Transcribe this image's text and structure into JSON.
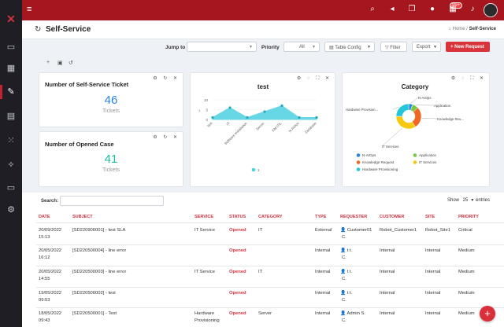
{
  "topbar": {
    "notification_count": "99+"
  },
  "page": {
    "title": "Self-Service",
    "breadcrumb_home": "Home",
    "breadcrumb_current": "Self-Service"
  },
  "toolbar": {
    "jump_label": "Jump to",
    "priority_label": "Priority",
    "priority_value": "All",
    "table_config": "Table Config",
    "filter": "Filter",
    "export": "Export",
    "new_request": "+ New Request"
  },
  "cards": {
    "self_service": {
      "title": "Number of Self-Service Ticket",
      "value": "46",
      "unit": "Tickets",
      "color": "#2e86de"
    },
    "opened_case": {
      "title": "Number of Opened Case",
      "value": "41",
      "unit": "Tickets",
      "color": "#1abc9c"
    }
  },
  "chart_data": [
    {
      "type": "area",
      "title": "test",
      "categories": [
        "N/A",
        "IT",
        "Software Installation",
        "Server",
        "KM-ITIL",
        "N-AIOps",
        "Database"
      ],
      "series": [
        {
          "name": "1",
          "values": [
            1,
            6,
            1,
            4,
            7,
            1,
            1
          ]
        }
      ],
      "ylim": [
        0,
        10
      ],
      "yticks": [
        "0",
        "5",
        "10"
      ],
      "ylabel_marker": "1",
      "legend_label": "1",
      "color": "#4dd0e1"
    },
    {
      "type": "pie",
      "title": "Category",
      "labels": [
        "N-AIOps",
        "Application",
        "Knowledge Request",
        "IT Services",
        "Hardware Provisioning"
      ],
      "slice_labels": [
        "N-AIOps",
        "Application",
        "Knowledge Reu...",
        "IT Services",
        "Hardware Provision..."
      ],
      "values": [
        5,
        8,
        28,
        34,
        25
      ],
      "colors": [
        "#2e86de",
        "#7ac943",
        "#f26522",
        "#f6c90e",
        "#24c6dc"
      ]
    }
  ],
  "table": {
    "search_label": "Search:",
    "show_label": "Show",
    "show_value": "25",
    "entries_label": "entries",
    "headers": [
      "DATE",
      "SUBJECT",
      "SERVICE",
      "STATUS",
      "CATEGORY",
      "TYPE",
      "REQUESTER",
      "CUSTOMER",
      "SITE",
      "PRIORITY"
    ],
    "rows": [
      {
        "date": "20/09/2022",
        "time": "15:13",
        "subject": "[SD220900001] - test SLA",
        "service": "IT Service",
        "service2": "",
        "status": "Opened",
        "category": "IT",
        "type": "External",
        "requester": "Customer01",
        "requester2": "C.",
        "customer": "Robot_Customer1",
        "site": "Robot_Site1",
        "priority": "Critical"
      },
      {
        "date": "20/05/2022",
        "time": "16:12",
        "subject": "[SD220500004] - line error",
        "service": "",
        "service2": "",
        "status": "Opened",
        "category": "",
        "type": "Internal",
        "requester": "t t.",
        "requester2": "C.",
        "customer": "Internal",
        "site": "Internal",
        "priority": "Medium"
      },
      {
        "date": "20/05/2022",
        "time": "14:55",
        "subject": "[SD220500003] - line error",
        "service": "IT Service",
        "service2": "",
        "status": "Opened",
        "category": "IT",
        "type": "Internal",
        "requester": "t t.",
        "requester2": "C.",
        "customer": "Internal",
        "site": "Internal",
        "priority": "Medium"
      },
      {
        "date": "19/05/2022",
        "time": "09:53",
        "subject": "[SD220500002] - test",
        "service": "",
        "service2": "",
        "status": "Opened",
        "category": "",
        "type": "Internal",
        "requester": "t t.",
        "requester2": "C.",
        "customer": "Internal",
        "site": "Internal",
        "priority": "Medium"
      },
      {
        "date": "18/05/2022",
        "time": "09:43",
        "subject": "[SD220500001] - Test",
        "service": "Hardware",
        "service2": "Provisioning",
        "status": "Opened",
        "category": "Server",
        "type": "Internal",
        "requester": "Admin S.",
        "requester2": "C.",
        "customer": "Internal",
        "site": "Internal",
        "priority": "Medium"
      }
    ]
  }
}
